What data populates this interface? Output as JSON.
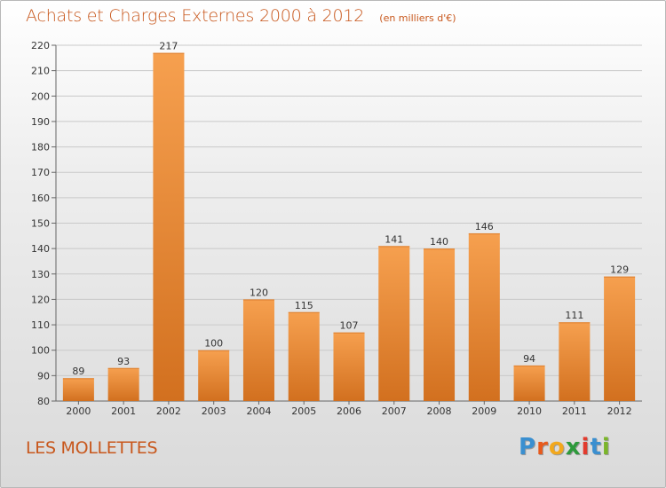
{
  "title": "Achats et Charges Externes 2000 à 2012",
  "subtitle": "(en milliers d'€)",
  "commune": "LES MOLLETTES",
  "logo": {
    "letters": [
      "P",
      "r",
      "o",
      "x",
      "i",
      "t",
      "i"
    ],
    "colors": [
      "#3a8fd0",
      "#e85a1c",
      "#f2a81d",
      "#2e9a3c",
      "#e23b2e",
      "#3a8fd0",
      "#7bb52a"
    ]
  },
  "colors": {
    "bar_light": "#f6a04f",
    "bar_dark": "#d2701f",
    "title": "#c8571c",
    "grid": "#c9c9c9"
  },
  "chart_data": {
    "type": "bar",
    "categories": [
      "2000",
      "2001",
      "2002",
      "2003",
      "2004",
      "2005",
      "2006",
      "2007",
      "2008",
      "2009",
      "2010",
      "2011",
      "2012"
    ],
    "values": [
      89,
      93,
      217,
      100,
      120,
      115,
      107,
      141,
      140,
      146,
      94,
      111,
      129
    ],
    "data_labels": [
      "89",
      "93",
      "217",
      "100",
      "120",
      "115",
      "107",
      "141",
      "140",
      "146",
      "94",
      "111",
      "129"
    ],
    "ylim": [
      80,
      220
    ],
    "yticks": [
      80,
      90,
      100,
      110,
      120,
      130,
      140,
      150,
      160,
      170,
      180,
      190,
      200,
      210,
      220
    ],
    "grid": true,
    "xlabel": "",
    "ylabel": ""
  }
}
